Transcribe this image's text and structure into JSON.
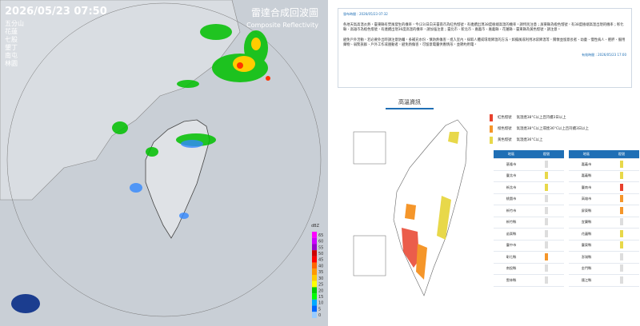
{
  "radar": {
    "timestamp": "2026/05/23  07:50",
    "title": "雷達合成回波圖",
    "subtitle": "Composite Reflectivity",
    "stations": [
      "五分山",
      "花蓮",
      "七股",
      "墾丁",
      "南屯",
      "林園"
    ],
    "colorbar": {
      "unit": "dBZ",
      "ticks": [
        65,
        60,
        55,
        50,
        45,
        40,
        35,
        30,
        25,
        20,
        15,
        10,
        5,
        0
      ],
      "colors": [
        "#ff00ff",
        "#cc00ff",
        "#9900cc",
        "#cc0000",
        "#ff0000",
        "#ff6600",
        "#ff9900",
        "#ffcc00",
        "#ffff00",
        "#00cc00",
        "#00ff00",
        "#00aaff",
        "#0066ff",
        "#99ccff"
      ]
    }
  },
  "alert": {
    "issued": "發布時間：2026/05/23 07:32",
    "paragraph1": "各地天氣高溫炎熱，臺東縣有焚風發生的機率，今(23)日白天臺南市為紅色燈號，有連續出現38度極端高溫的機率，請特別注意；屏東縣為橙色燈號，有38度極端高溫出現的機率；彰化縣、高雄市為橙色燈號，有連續出現36度高溫的機率，請加強注意；臺北市、新北市、嘉義市、嘉義縣、花蓮縣、臺東縣為黃色燈號，請注意。",
    "paragraph2": "避免戶外活動，若必要外出時請注意防曬，多補充水份、慎防熱傷害，進入室內，採取人體或環境降溫的方法，如搧風或利用冰袋降溫等，關懷並留意長者、幼童、慢性病人、肥胖、服用藥物、弱勢族群、戶外工作或運動者，避免熱傷害，可留意電量供應情形，並節約用電。",
    "valid": "有效時間：2026/05/23 17:00",
    "section_title": "高溫資訊",
    "legend": [
      {
        "level": "紅色燈號",
        "desc": "氣溫達38°C以上且持續3日以上",
        "color": "#e8412c"
      },
      {
        "level": "橙色燈號",
        "desc": "氣溫達38°C以上或達36°C以上且持續3日以上",
        "color": "#f5962a"
      },
      {
        "level": "黃色燈號",
        "desc": "氣溫達36°C以上",
        "color": "#e8d84a"
      }
    ],
    "table_header": [
      "地區",
      "燈號",
      "地區",
      "燈號"
    ],
    "left_regions": [
      {
        "name": "基隆市",
        "color": null
      },
      {
        "name": "臺北市",
        "color": "#e8d84a"
      },
      {
        "name": "新北市",
        "color": "#e8d84a"
      },
      {
        "name": "桃園市",
        "color": null
      },
      {
        "name": "新竹市",
        "color": null
      },
      {
        "name": "新竹縣",
        "color": null
      },
      {
        "name": "苗栗縣",
        "color": null
      },
      {
        "name": "臺中市",
        "color": null
      },
      {
        "name": "彰化縣",
        "color": "#f5962a"
      },
      {
        "name": "南投縣",
        "color": null
      },
      {
        "name": "雲林縣",
        "color": null
      }
    ],
    "right_regions": [
      {
        "name": "嘉義市",
        "color": "#e8d84a"
      },
      {
        "name": "嘉義縣",
        "color": "#e8d84a"
      },
      {
        "name": "臺南市",
        "color": "#e8412c"
      },
      {
        "name": "高雄市",
        "color": "#f5962a"
      },
      {
        "name": "屏東縣",
        "color": "#f5962a"
      },
      {
        "name": "宜蘭縣",
        "color": null
      },
      {
        "name": "花蓮縣",
        "color": "#e8d84a"
      },
      {
        "name": "臺東縣",
        "color": "#e8d84a"
      },
      {
        "name": "澎湖縣",
        "color": null
      },
      {
        "name": "金門縣",
        "color": null
      },
      {
        "name": "連江縣",
        "color": null
      }
    ]
  }
}
